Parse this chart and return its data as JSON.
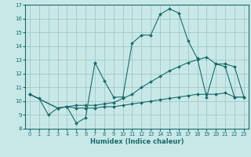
{
  "xlabel": "Humidex (Indice chaleur)",
  "background_color": "#c8e8e8",
  "grid_color": "#a0c8c8",
  "line_color": "#1a6b6b",
  "xlim": [
    -0.5,
    23.5
  ],
  "ylim": [
    8,
    17
  ],
  "xticks": [
    0,
    1,
    2,
    3,
    4,
    5,
    6,
    7,
    8,
    9,
    10,
    11,
    12,
    13,
    14,
    15,
    16,
    17,
    18,
    19,
    20,
    21,
    22,
    23
  ],
  "yticks": [
    8,
    9,
    10,
    11,
    12,
    13,
    14,
    15,
    16,
    17
  ],
  "line1_x": [
    0,
    1,
    2,
    3,
    4,
    5,
    6,
    7,
    8,
    9,
    10,
    11,
    12,
    13,
    14,
    15,
    16,
    17,
    18,
    19,
    20,
    21,
    22,
    23
  ],
  "line1_y": [
    10.5,
    10.2,
    9.0,
    9.5,
    9.6,
    8.4,
    8.8,
    12.8,
    11.5,
    10.3,
    10.3,
    14.2,
    14.8,
    14.8,
    16.3,
    16.7,
    16.4,
    14.4,
    13.1,
    10.3,
    12.7,
    12.5,
    10.3,
    10.3
  ],
  "line2_x": [
    0,
    3,
    4,
    5,
    6,
    7,
    8,
    9,
    10,
    11,
    12,
    13,
    14,
    15,
    16,
    17,
    18,
    19,
    20,
    21,
    22,
    23
  ],
  "line2_y": [
    10.5,
    9.5,
    9.6,
    9.5,
    9.5,
    9.5,
    9.6,
    9.6,
    9.7,
    9.8,
    9.9,
    10.0,
    10.1,
    10.2,
    10.3,
    10.4,
    10.5,
    10.5,
    10.5,
    10.6,
    10.3,
    10.3
  ],
  "line3_x": [
    0,
    3,
    4,
    5,
    6,
    7,
    8,
    9,
    10,
    11,
    12,
    13,
    14,
    15,
    16,
    17,
    18,
    19,
    20,
    21,
    22,
    23
  ],
  "line3_y": [
    10.5,
    9.5,
    9.6,
    9.7,
    9.7,
    9.7,
    9.8,
    9.9,
    10.2,
    10.5,
    11.0,
    11.4,
    11.8,
    12.2,
    12.5,
    12.8,
    13.0,
    13.2,
    12.7,
    12.7,
    12.5,
    10.3
  ]
}
